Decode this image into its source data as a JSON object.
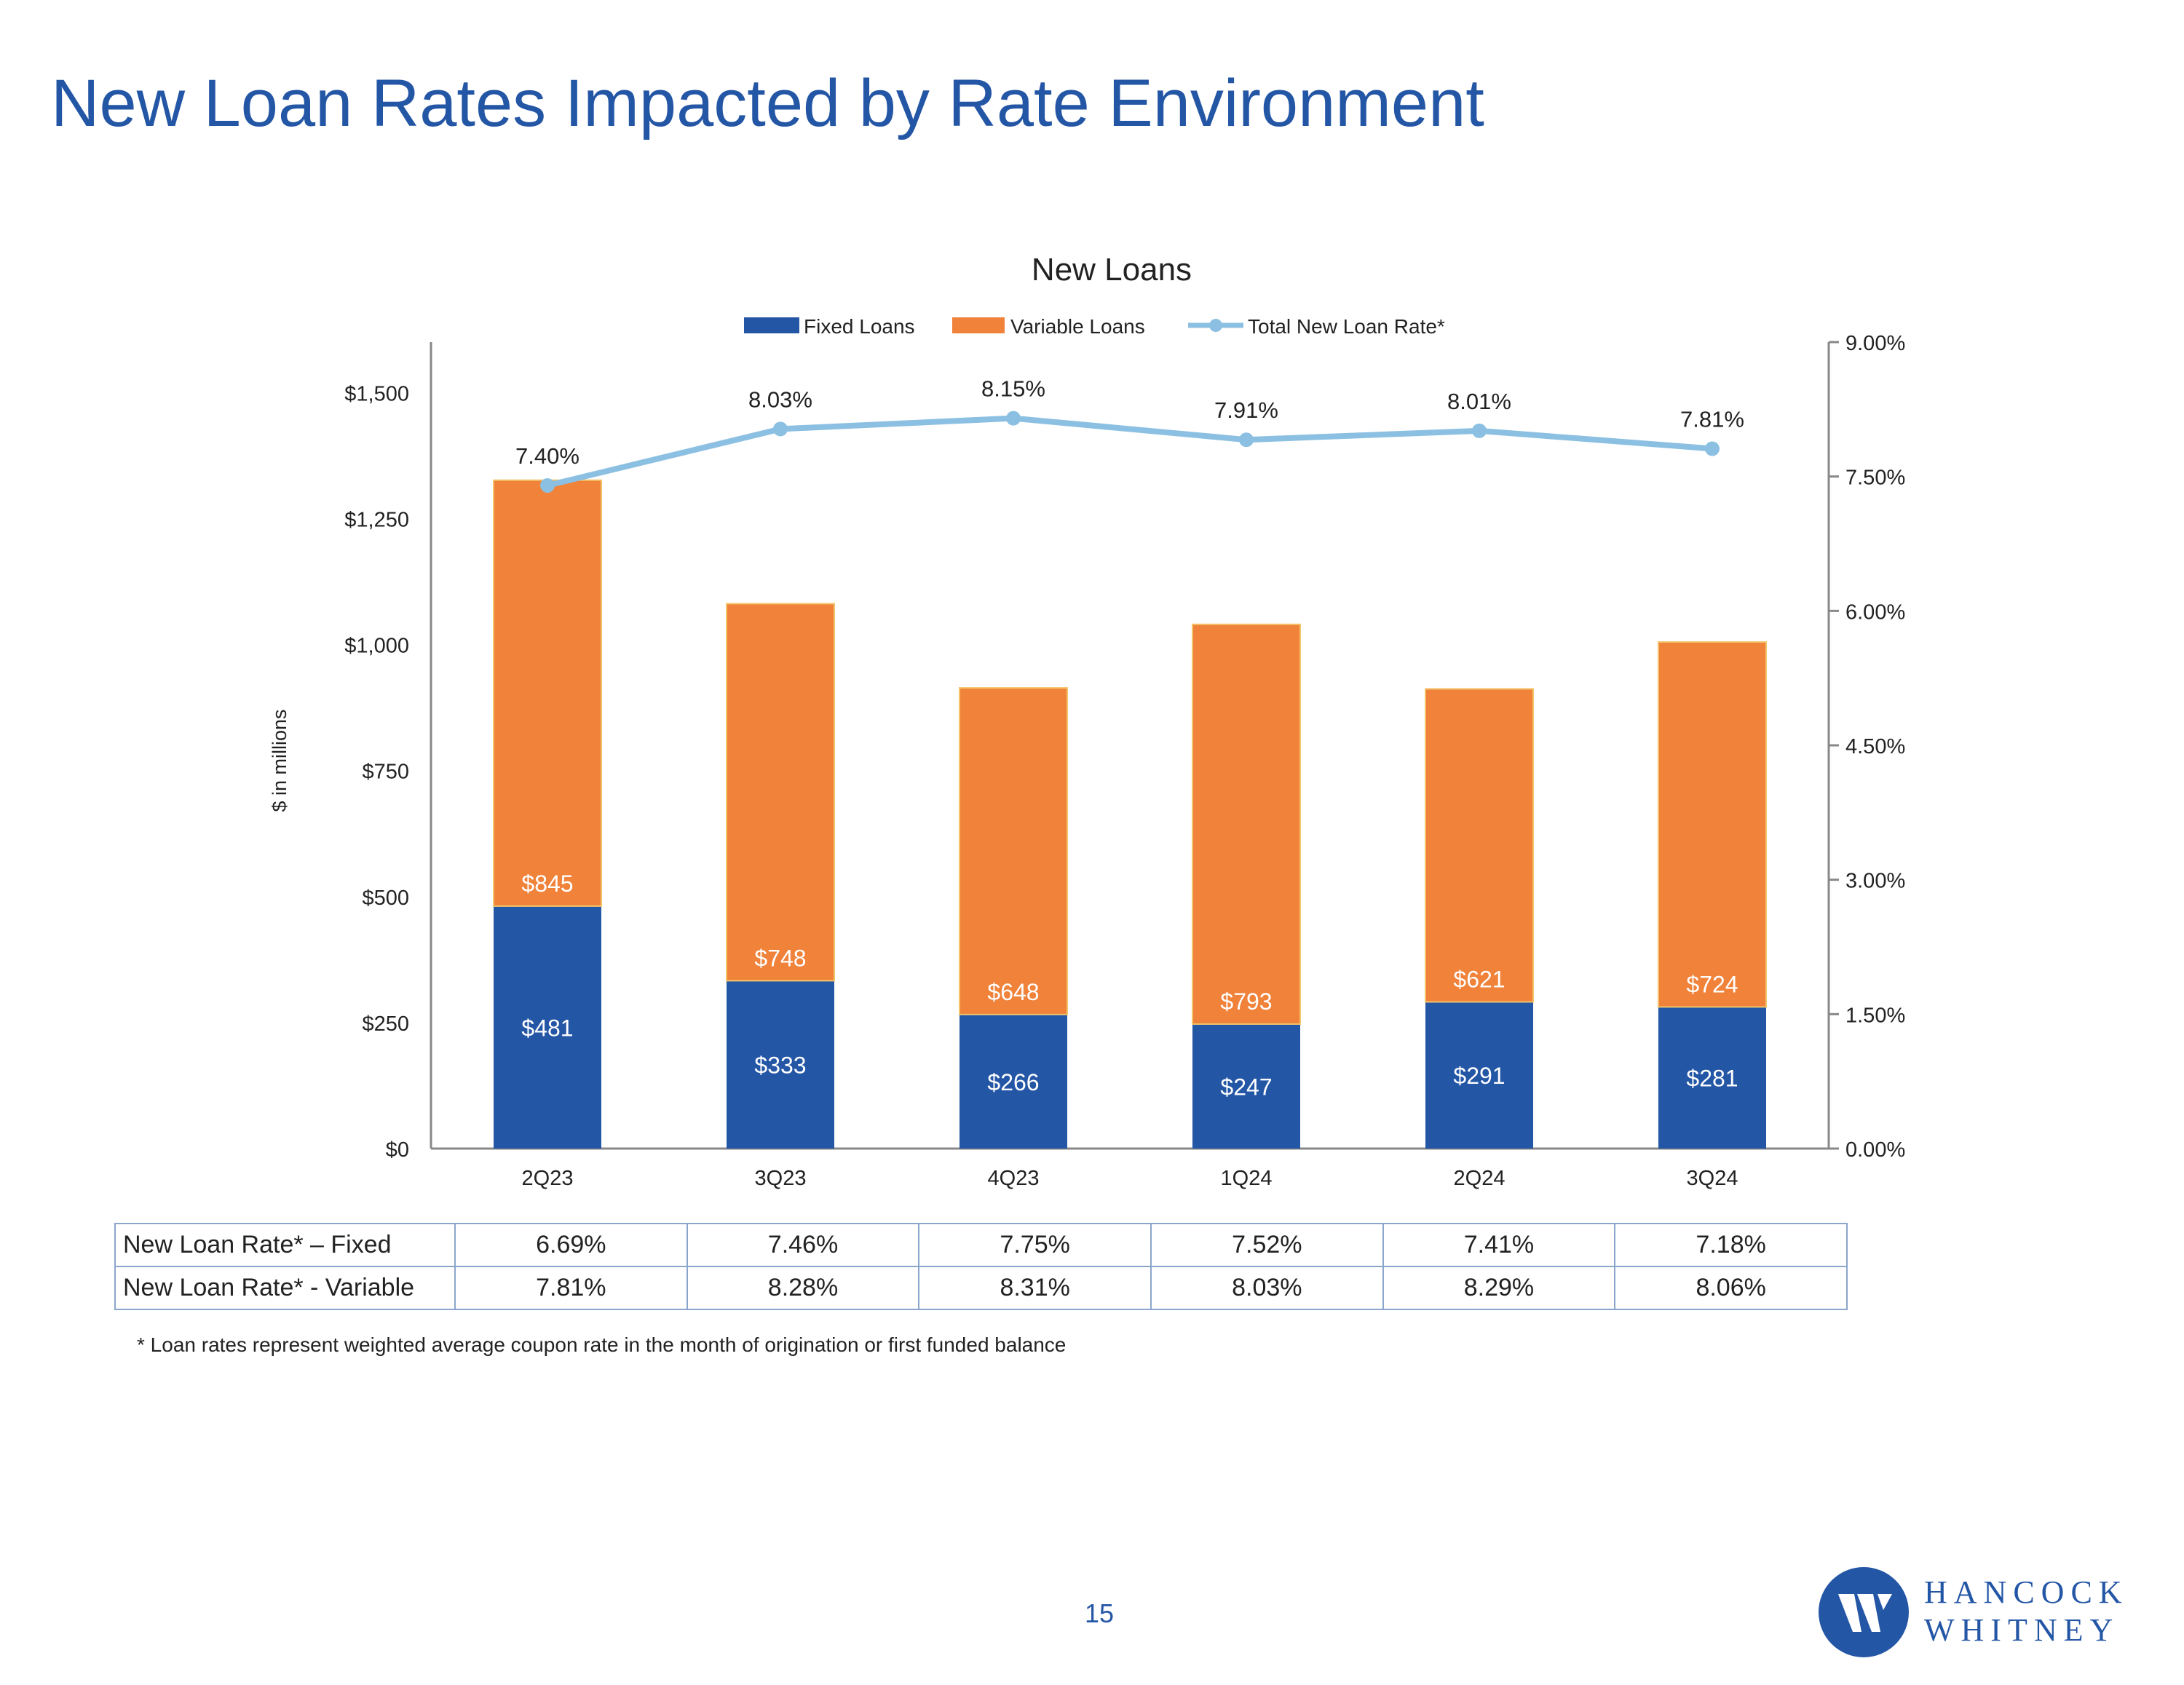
{
  "title": "New Loan Rates Impacted by Rate Environment",
  "colors": {
    "title": "#2456a6",
    "fixed": "#2456a6",
    "variable": "#f0823a",
    "rate_line": "#8cc0e2",
    "axis": "#888888",
    "table_border": "#8aa6cc"
  },
  "chart_data": {
    "type": "bar",
    "stacked": true,
    "title": "New Loans",
    "categories": [
      "2Q23",
      "3Q23",
      "4Q23",
      "1Q24",
      "2Q24",
      "3Q24"
    ],
    "series": [
      {
        "name": "Fixed Loans",
        "values": [
          481,
          333,
          266,
          247,
          291,
          281
        ],
        "labels": [
          "$481",
          "$333",
          "$266",
          "$247",
          "$291",
          "$281"
        ]
      },
      {
        "name": "Variable Loans",
        "values": [
          845,
          748,
          648,
          793,
          621,
          724
        ],
        "labels": [
          "$845",
          "$748",
          "$648",
          "$793",
          "$621",
          "$724"
        ]
      }
    ],
    "line_series": {
      "name": "Total New Loan Rate*",
      "values": [
        7.4,
        8.03,
        8.15,
        7.91,
        8.01,
        7.81
      ],
      "labels": [
        "7.40%",
        "8.03%",
        "8.15%",
        "7.91%",
        "8.01%",
        "7.81%"
      ],
      "axis": "right"
    },
    "ylabel": "$ in millions",
    "ylim": [
      0,
      1600
    ],
    "yticks": [
      0,
      250,
      500,
      750,
      1000,
      1250,
      1500
    ],
    "ytick_labels": [
      "$0",
      "$250",
      "$500",
      "$750",
      "$1,000",
      "$1,250",
      "$1,500"
    ],
    "y2lim": [
      0,
      9
    ],
    "y2ticks": [
      0,
      1.5,
      3,
      4.5,
      6,
      7.5,
      9
    ],
    "y2tick_labels": [
      "0.00%",
      "1.50%",
      "3.00%",
      "4.50%",
      "6.00%",
      "7.50%",
      "9.00%"
    ],
    "legend": "top-center",
    "grid": false
  },
  "table": {
    "rows": [
      {
        "label": "New Loan Rate* – Fixed",
        "values": [
          "6.69%",
          "7.46%",
          "7.75%",
          "7.52%",
          "7.41%",
          "7.18%"
        ]
      },
      {
        "label": "New Loan Rate* - Variable",
        "values": [
          "7.81%",
          "8.28%",
          "8.31%",
          "8.03%",
          "8.29%",
          "8.06%"
        ]
      }
    ]
  },
  "footnote": "* Loan rates represent weighted average coupon rate in the month of origination or first funded balance",
  "page_number": "15",
  "logo": {
    "line1": "HANCOCK",
    "line2": "WHITNEY"
  }
}
